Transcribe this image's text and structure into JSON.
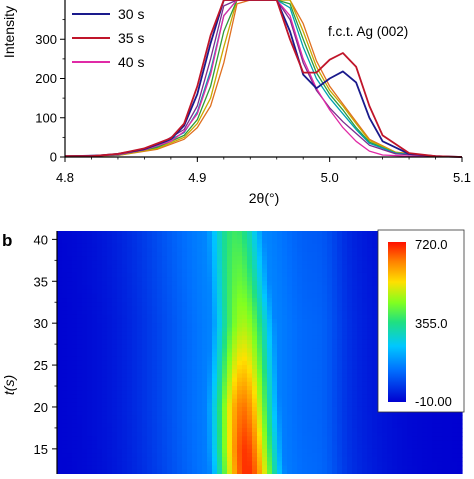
{
  "chart_data": [
    {
      "type": "line",
      "panel_label": "",
      "xlabel": "2θ(°)",
      "ylabel": "Intensity",
      "xlim": [
        4.8,
        5.1
      ],
      "ylim": [
        0,
        400
      ],
      "xticks": [
        4.8,
        4.9,
        5.0,
        5.1
      ],
      "xtick_labels": [
        "4.8",
        "4.9",
        "5.0",
        "5.1"
      ],
      "yticks": [
        0,
        100,
        200,
        300
      ],
      "ytick_labels": [
        "0",
        "100",
        "200",
        "300"
      ],
      "annotation": "f.c.t. Ag (002)",
      "legend_placement": "top-left",
      "grid": false,
      "series": [
        {
          "name": "30 s",
          "color": "#1a1a8c",
          "x": [
            4.8,
            4.82,
            4.84,
            4.86,
            4.88,
            4.89,
            4.9,
            4.91,
            4.92,
            4.93,
            4.94,
            4.95,
            4.96,
            4.97,
            4.98,
            4.99,
            5.0,
            5.01,
            5.02,
            5.03,
            5.04,
            5.06,
            5.08,
            5.1
          ],
          "y": [
            2,
            2,
            8,
            20,
            45,
            80,
            160,
            290,
            400,
            400,
            400,
            400,
            400,
            320,
            210,
            175,
            200,
            218,
            190,
            100,
            40,
            8,
            2,
            0
          ]
        },
        {
          "name": "35 s",
          "color": "#c0152a",
          "x": [
            4.8,
            4.82,
            4.84,
            4.86,
            4.88,
            4.89,
            4.9,
            4.91,
            4.92,
            4.93,
            4.94,
            4.95,
            4.96,
            4.97,
            4.98,
            4.99,
            5.0,
            5.01,
            5.02,
            5.03,
            5.04,
            5.06,
            5.08,
            5.1
          ],
          "y": [
            2,
            2,
            8,
            22,
            48,
            85,
            180,
            310,
            400,
            400,
            400,
            400,
            400,
            300,
            215,
            215,
            248,
            265,
            230,
            130,
            55,
            10,
            2,
            0
          ]
        },
        {
          "name": "40 s",
          "color": "#e02aa6",
          "x": [
            4.8,
            4.82,
            4.84,
            4.86,
            4.88,
            4.89,
            4.9,
            4.91,
            4.92,
            4.93,
            4.94,
            4.95,
            4.96,
            4.97,
            4.98,
            4.99,
            5.0,
            5.01,
            5.02,
            5.03,
            5.04,
            5.06,
            5.08,
            5.1
          ],
          "y": [
            2,
            2,
            6,
            18,
            40,
            65,
            110,
            210,
            360,
            400,
            400,
            400,
            400,
            360,
            250,
            175,
            120,
            75,
            40,
            15,
            5,
            2,
            1,
            0
          ]
        },
        {
          "name": "",
          "color": "#7b2d8e",
          "x": [
            4.8,
            4.84,
            4.87,
            4.89,
            4.9,
            4.91,
            4.92,
            4.93,
            4.94,
            4.95,
            4.96,
            4.97,
            4.98,
            4.99,
            5.0,
            5.01,
            5.02,
            5.03,
            5.05,
            5.08,
            5.1
          ],
          "y": [
            2,
            6,
            30,
            70,
            130,
            250,
            385,
            400,
            400,
            400,
            400,
            350,
            240,
            170,
            125,
            90,
            60,
            30,
            8,
            2,
            0
          ]
        },
        {
          "name": "",
          "color": "#00a0b0",
          "x": [
            4.8,
            4.84,
            4.87,
            4.89,
            4.9,
            4.91,
            4.92,
            4.93,
            4.94,
            4.95,
            4.96,
            4.97,
            4.98,
            4.99,
            5.0,
            5.01,
            5.02,
            5.03,
            5.05,
            5.08,
            5.1
          ],
          "y": [
            2,
            5,
            28,
            62,
            115,
            220,
            360,
            400,
            400,
            400,
            400,
            380,
            280,
            200,
            150,
            110,
            70,
            35,
            10,
            2,
            0
          ]
        },
        {
          "name": "",
          "color": "#2e9c3a",
          "x": [
            4.8,
            4.84,
            4.87,
            4.89,
            4.9,
            4.91,
            4.92,
            4.93,
            4.94,
            4.95,
            4.96,
            4.97,
            4.98,
            4.99,
            5.0,
            5.01,
            5.02,
            5.03,
            5.05,
            5.08,
            5.1
          ],
          "y": [
            2,
            5,
            25,
            55,
            95,
            180,
            320,
            400,
            400,
            400,
            400,
            390,
            300,
            215,
            160,
            120,
            75,
            38,
            10,
            2,
            0
          ]
        },
        {
          "name": "",
          "color": "#c8a800",
          "x": [
            4.8,
            4.84,
            4.87,
            4.89,
            4.9,
            4.91,
            4.92,
            4.93,
            4.94,
            4.95,
            4.96,
            4.97,
            4.98,
            4.99,
            5.0,
            5.01,
            5.02,
            5.03,
            5.05,
            5.08,
            5.1
          ],
          "y": [
            2,
            4,
            22,
            50,
            85,
            150,
            280,
            400,
            400,
            400,
            400,
            400,
            320,
            230,
            170,
            130,
            85,
            42,
            12,
            2,
            0
          ]
        },
        {
          "name": "",
          "color": "#e07020",
          "x": [
            4.8,
            4.84,
            4.87,
            4.89,
            4.9,
            4.91,
            4.92,
            4.93,
            4.94,
            4.95,
            4.96,
            4.97,
            4.98,
            4.99,
            5.0,
            5.01,
            5.02,
            5.03,
            5.05,
            5.08,
            5.1
          ],
          "y": [
            2,
            4,
            20,
            45,
            75,
            130,
            240,
            390,
            400,
            400,
            400,
            400,
            340,
            245,
            180,
            135,
            90,
            45,
            12,
            2,
            0
          ]
        }
      ]
    },
    {
      "type": "heatmap",
      "panel_label": "b",
      "ylabel": "t(s)",
      "ylim": [
        12,
        41
      ],
      "yticks": [
        15,
        20,
        25,
        30,
        35,
        40
      ],
      "ytick_labels": [
        "15",
        "20",
        "25",
        "30",
        "35",
        "40"
      ],
      "colorbar": {
        "min": -10.0,
        "max": 720.0,
        "tick_labels": [
          "720.0",
          "355.0",
          "-10.00"
        ]
      },
      "rows_t": [
        41,
        35,
        30,
        25,
        20,
        15,
        12
      ],
      "ridge_center_fraction": [
        0.44,
        0.45,
        0.46,
        0.46,
        0.46,
        0.465,
        0.47
      ],
      "peak_value": [
        390,
        430,
        480,
        560,
        650,
        700,
        710
      ]
    }
  ]
}
